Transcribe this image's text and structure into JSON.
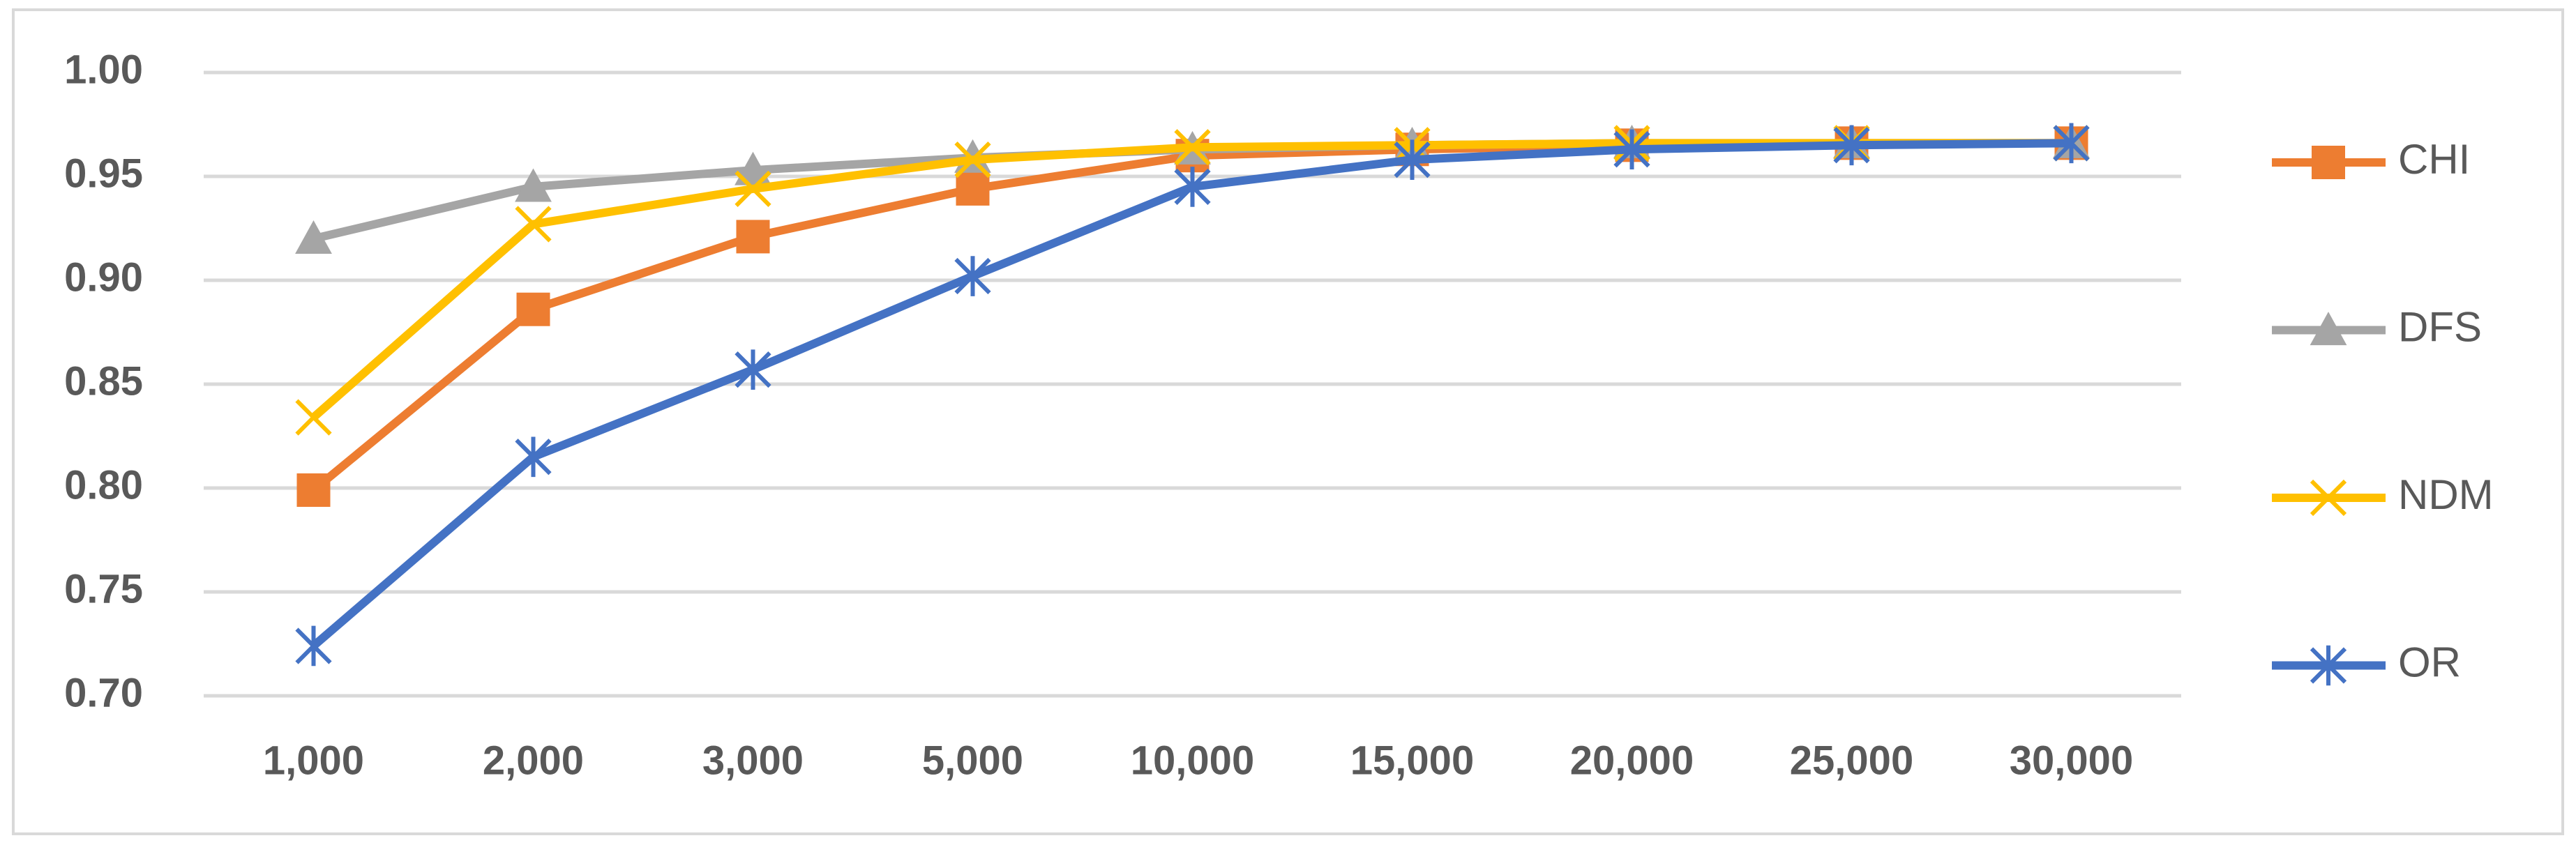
{
  "chart_data": {
    "type": "line",
    "categories": [
      "1,000",
      "2,000",
      "3,000",
      "5,000",
      "10,000",
      "15,000",
      "20,000",
      "25,000",
      "30,000"
    ],
    "series": [
      {
        "name": "CHI",
        "color": "#ed7d31",
        "marker": "square",
        "values": [
          0.799,
          0.886,
          0.921,
          0.944,
          0.96,
          0.963,
          0.965,
          0.966,
          0.966
        ]
      },
      {
        "name": "DFS",
        "color": "#a5a5a5",
        "marker": "triangle",
        "values": [
          0.92,
          0.945,
          0.953,
          0.959,
          0.963,
          0.965,
          0.966,
          0.966,
          0.966
        ]
      },
      {
        "name": "NDM",
        "color": "#ffc000",
        "marker": "x",
        "values": [
          0.834,
          0.927,
          0.944,
          0.958,
          0.964,
          0.965,
          0.966,
          0.966,
          0.966
        ]
      },
      {
        "name": "OR",
        "color": "#4472c4",
        "marker": "star",
        "values": [
          0.724,
          0.815,
          0.857,
          0.902,
          0.945,
          0.958,
          0.963,
          0.965,
          0.966
        ]
      }
    ],
    "ylim": [
      0.7,
      1.0
    ],
    "yticks": [
      {
        "value": 0.7,
        "label": "0.70"
      },
      0.75,
      {
        "value": 0.8,
        "label": "0.80"
      },
      0.85,
      {
        "value": 0.9,
        "label": "0.90"
      },
      0.95,
      {
        "value": 1,
        "label": "1.00"
      }
    ],
    "grid": true,
    "legend": "right"
  }
}
